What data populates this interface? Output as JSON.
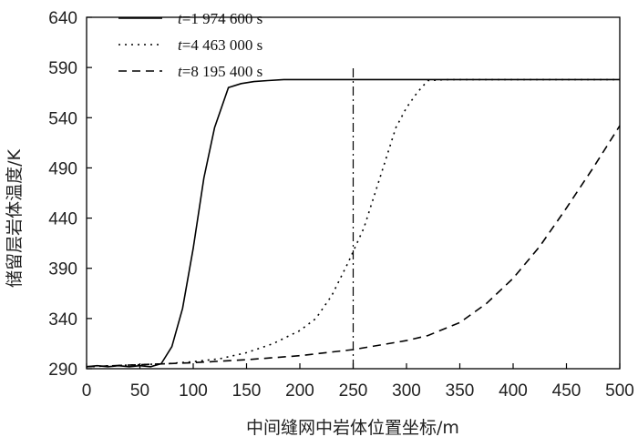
{
  "chart_data": {
    "type": "line",
    "xlabel": "中间缝网中岩体位置坐标/m",
    "ylabel": "储留层岩体温度/K",
    "xlim": [
      0,
      500
    ],
    "ylim": [
      290,
      640
    ],
    "xticks": [
      0,
      50,
      100,
      150,
      200,
      250,
      300,
      350,
      400,
      450,
      500
    ],
    "yticks": [
      290,
      340,
      390,
      440,
      490,
      540,
      590,
      640
    ],
    "grid": false,
    "legend_position": "top-left",
    "reference_line": {
      "x": 250,
      "style": "dash-dot"
    },
    "series": [
      {
        "name": "t=1 974 600 s",
        "legend_italic": "t",
        "legend_rest": "=1 974 600 s",
        "style": "solid",
        "x": [
          0,
          10,
          20,
          30,
          40,
          50,
          60,
          70,
          80,
          90,
          100,
          110,
          120,
          133,
          145,
          157,
          170,
          185,
          200,
          250,
          300,
          350,
          400,
          450,
          500
        ],
        "y": [
          292,
          293,
          292,
          293,
          292,
          293,
          292,
          295,
          312,
          350,
          410,
          480,
          530,
          570,
          574,
          576,
          577,
          578,
          578,
          578,
          578,
          578,
          578,
          578,
          578
        ]
      },
      {
        "name": "t=4 463 000 s",
        "legend_italic": "t",
        "legend_rest": "=4 463 000 s",
        "style": "dotted",
        "x": [
          0,
          25,
          50,
          75,
          100,
          125,
          150,
          175,
          200,
          215,
          230,
          245,
          260,
          275,
          290,
          300,
          310,
          320,
          340,
          370,
          400,
          450,
          500
        ],
        "y": [
          292,
          293,
          294,
          295,
          297,
          300,
          306,
          315,
          328,
          340,
          363,
          395,
          430,
          480,
          530,
          550,
          565,
          577,
          578,
          578,
          578,
          578,
          578
        ]
      },
      {
        "name": "t=8 195 400 s",
        "legend_italic": "t",
        "legend_rest": "=8 195 400 s",
        "style": "dashed",
        "x": [
          0,
          25,
          50,
          75,
          100,
          150,
          200,
          250,
          300,
          320,
          350,
          375,
          400,
          425,
          450,
          475,
          500
        ],
        "y": [
          292,
          293,
          294,
          295,
          296,
          299,
          303,
          309,
          318,
          323,
          336,
          355,
          380,
          412,
          450,
          490,
          532
        ]
      }
    ]
  }
}
